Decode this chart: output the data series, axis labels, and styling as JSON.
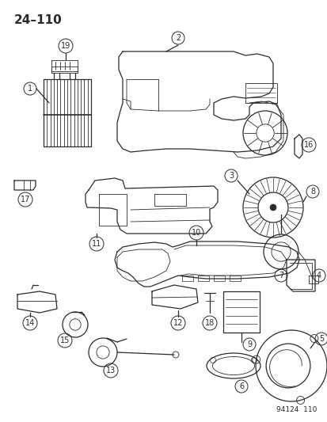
{
  "title": "24–110",
  "figure_code": "94124  110",
  "background_color": "#ffffff",
  "line_color": "#2a2a2a",
  "label_color": "#2a2a2a",
  "title_fontsize": 11,
  "label_fontsize": 7,
  "fig_w": 4.14,
  "fig_h": 5.33,
  "dpi": 100
}
